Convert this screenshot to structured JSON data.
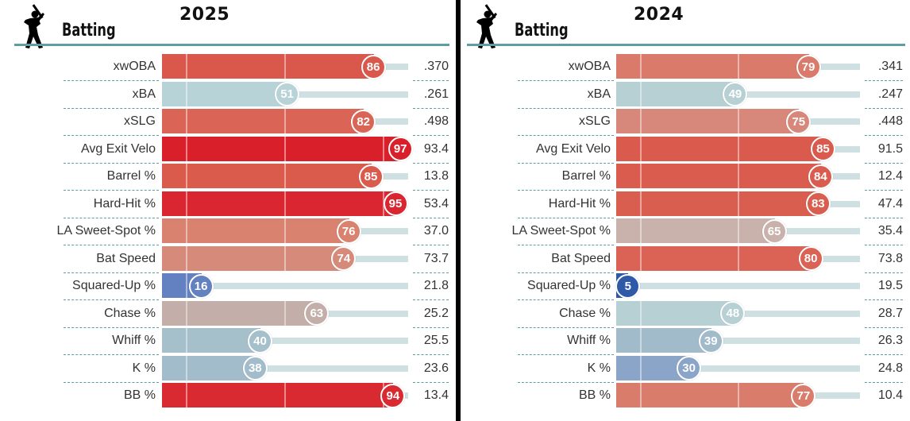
{
  "panels": [
    {
      "year": "2025",
      "header": "Batting",
      "icon": "batter-icon"
    },
    {
      "year": "2024",
      "header": "Batting",
      "icon": "batter-icon"
    }
  ],
  "chart_data": [
    {
      "type": "bar",
      "title": "2025",
      "subtitle": "Batting",
      "xlim": [
        0,
        100
      ],
      "categories": [
        "xwOBA",
        "xBA",
        "xSLG",
        "Avg Exit Velo",
        "Barrel %",
        "Hard-Hit %",
        "LA Sweet-Spot %",
        "Bat Speed",
        "Squared-Up %",
        "Chase %",
        "Whiff %",
        "K %",
        "BB %"
      ],
      "percentiles": [
        86,
        51,
        82,
        97,
        85,
        95,
        76,
        74,
        16,
        63,
        40,
        38,
        94
      ],
      "values": [
        ".370",
        ".261",
        ".498",
        "93.4",
        "13.8",
        "53.4",
        "37.0",
        "73.7",
        "21.8",
        "25.2",
        "25.5",
        "23.6",
        "13.4"
      ],
      "colors": [
        "#d9574b",
        "#b8d3d7",
        "#da6456",
        "#d91f2a",
        "#da5a4c",
        "#d92630",
        "#d8826f",
        "#d68a7a",
        "#6381c0",
        "#c4aeaa",
        "#a5bfcb",
        "#a2bccb",
        "#d92a31"
      ]
    },
    {
      "type": "bar",
      "title": "2024",
      "subtitle": "Batting",
      "xlim": [
        0,
        100
      ],
      "categories": [
        "xwOBA",
        "xBA",
        "xSLG",
        "Avg Exit Velo",
        "Barrel %",
        "Hard-Hit %",
        "LA Sweet-Spot %",
        "Bat Speed",
        "Squared-Up %",
        "Chase %",
        "Whiff %",
        "K %",
        "BB %"
      ],
      "percentiles": [
        79,
        49,
        75,
        85,
        84,
        83,
        65,
        80,
        5,
        48,
        39,
        30,
        77
      ],
      "values": [
        ".341",
        ".247",
        ".448",
        "91.5",
        "12.4",
        "47.4",
        "35.4",
        "73.8",
        "19.5",
        "28.7",
        "26.3",
        "24.8",
        "10.4"
      ],
      "colors": [
        "#d97a6a",
        "#b6d0d4",
        "#d8887a",
        "#da5b4d",
        "#da5c4e",
        "#da5e50",
        "#c9b2ac",
        "#da6355",
        "#2f5aa7",
        "#b6d0d4",
        "#a2bbcb",
        "#8aa5c8",
        "#d97c6c"
      ]
    }
  ]
}
